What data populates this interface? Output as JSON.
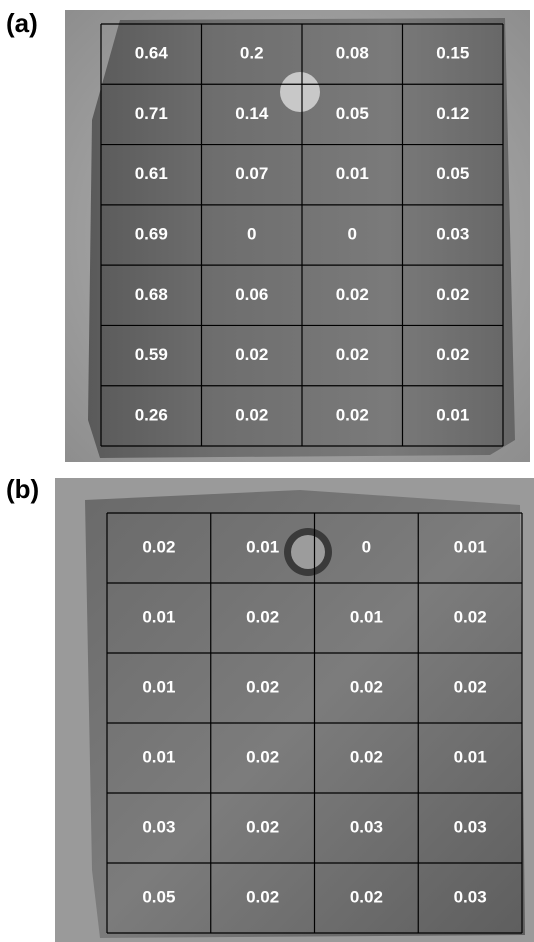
{
  "panels": [
    {
      "label": "(a)",
      "rows": [
        [
          "0.64",
          "0.2",
          "0.08",
          "0.15"
        ],
        [
          "0.71",
          "0.14",
          "0.05",
          "0.12"
        ],
        [
          "0.61",
          "0.07",
          "0.01",
          "0.05"
        ],
        [
          "0.69",
          "0",
          "0",
          "0.03"
        ],
        [
          "0.68",
          "0.06",
          "0.02",
          "0.02"
        ],
        [
          "0.59",
          "0.02",
          "0.02",
          "0.02"
        ],
        [
          "0.26",
          "0.02",
          "0.02",
          "0.01"
        ]
      ]
    },
    {
      "label": "(b)",
      "rows": [
        [
          "0.02",
          "0.01",
          "0",
          "0.01"
        ],
        [
          "0.01",
          "0.02",
          "0.01",
          "0.02"
        ],
        [
          "0.01",
          "0.02",
          "0.02",
          "0.02"
        ],
        [
          "0.01",
          "0.02",
          "0.02",
          "0.01"
        ],
        [
          "0.03",
          "0.02",
          "0.03",
          "0.03"
        ],
        [
          "0.05",
          "0.02",
          "0.02",
          "0.03"
        ]
      ]
    }
  ]
}
